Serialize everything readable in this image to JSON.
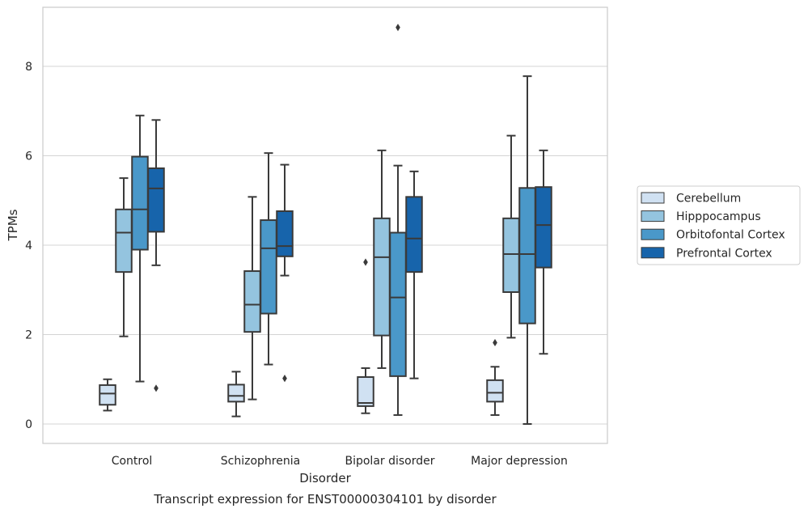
{
  "chart_data": {
    "type": "boxplot",
    "title": "Transcript expression for ENST00000304101 by disorder",
    "xlabel": "Disorder",
    "ylabel": "TPMs",
    "ylim": [
      -0.4,
      9.3
    ],
    "yticks": [
      0,
      2,
      4,
      6,
      8
    ],
    "grid": true,
    "legend_position": "outside-right",
    "categories": [
      "Control",
      "Schizophrenia",
      "Bipolar disorder",
      "Major depression"
    ],
    "series": [
      {
        "name": "Cerebellum",
        "color": "#d0e1f2",
        "boxes": [
          {
            "min": 0.3,
            "q1": 0.43,
            "median": 0.68,
            "q3": 0.87,
            "max": 1.0,
            "outliers": []
          },
          {
            "min": 0.17,
            "q1": 0.5,
            "median": 0.63,
            "q3": 0.88,
            "max": 1.17,
            "outliers": []
          },
          {
            "min": 0.24,
            "q1": 0.4,
            "median": 0.47,
            "q3": 1.05,
            "max": 1.25,
            "outliers": [
              3.62
            ]
          },
          {
            "min": 0.2,
            "q1": 0.5,
            "median": 0.7,
            "q3": 0.98,
            "max": 1.28,
            "outliers": [
              1.82
            ]
          }
        ]
      },
      {
        "name": "Hipppocampus",
        "color": "#94c4df",
        "boxes": [
          {
            "min": 1.96,
            "q1": 3.4,
            "median": 4.28,
            "q3": 4.8,
            "max": 5.5,
            "outliers": []
          },
          {
            "min": 0.55,
            "q1": 2.06,
            "median": 2.67,
            "q3": 3.42,
            "max": 5.08,
            "outliers": []
          },
          {
            "min": 1.25,
            "q1": 1.98,
            "median": 3.73,
            "q3": 4.6,
            "max": 6.12,
            "outliers": []
          },
          {
            "min": 1.93,
            "q1": 2.95,
            "median": 3.8,
            "q3": 4.6,
            "max": 6.45,
            "outliers": []
          }
        ]
      },
      {
        "name": "Orbitofontal Cortex",
        "color": "#4a98c9",
        "boxes": [
          {
            "min": 0.95,
            "q1": 3.9,
            "median": 4.8,
            "q3": 5.98,
            "max": 6.9,
            "outliers": []
          },
          {
            "min": 1.33,
            "q1": 2.47,
            "median": 3.93,
            "q3": 4.56,
            "max": 6.06,
            "outliers": []
          },
          {
            "min": 0.2,
            "q1": 1.07,
            "median": 2.83,
            "q3": 4.28,
            "max": 5.78,
            "outliers": [
              8.87
            ]
          },
          {
            "min": 0.0,
            "q1": 2.25,
            "median": 3.8,
            "q3": 5.28,
            "max": 7.78,
            "outliers": []
          }
        ]
      },
      {
        "name": "Prefrontal Cortex",
        "color": "#1764ab",
        "boxes": [
          {
            "min": 3.55,
            "q1": 4.3,
            "median": 5.27,
            "q3": 5.72,
            "max": 6.8,
            "outliers": [
              0.8
            ]
          },
          {
            "min": 3.32,
            "q1": 3.75,
            "median": 3.98,
            "q3": 4.76,
            "max": 5.8,
            "outliers": [
              1.02
            ]
          },
          {
            "min": 1.02,
            "q1": 3.4,
            "median": 4.15,
            "q3": 5.08,
            "max": 5.65,
            "outliers": []
          },
          {
            "min": 1.57,
            "q1": 3.5,
            "median": 4.45,
            "q3": 5.3,
            "max": 6.12,
            "outliers": []
          }
        ]
      }
    ]
  }
}
